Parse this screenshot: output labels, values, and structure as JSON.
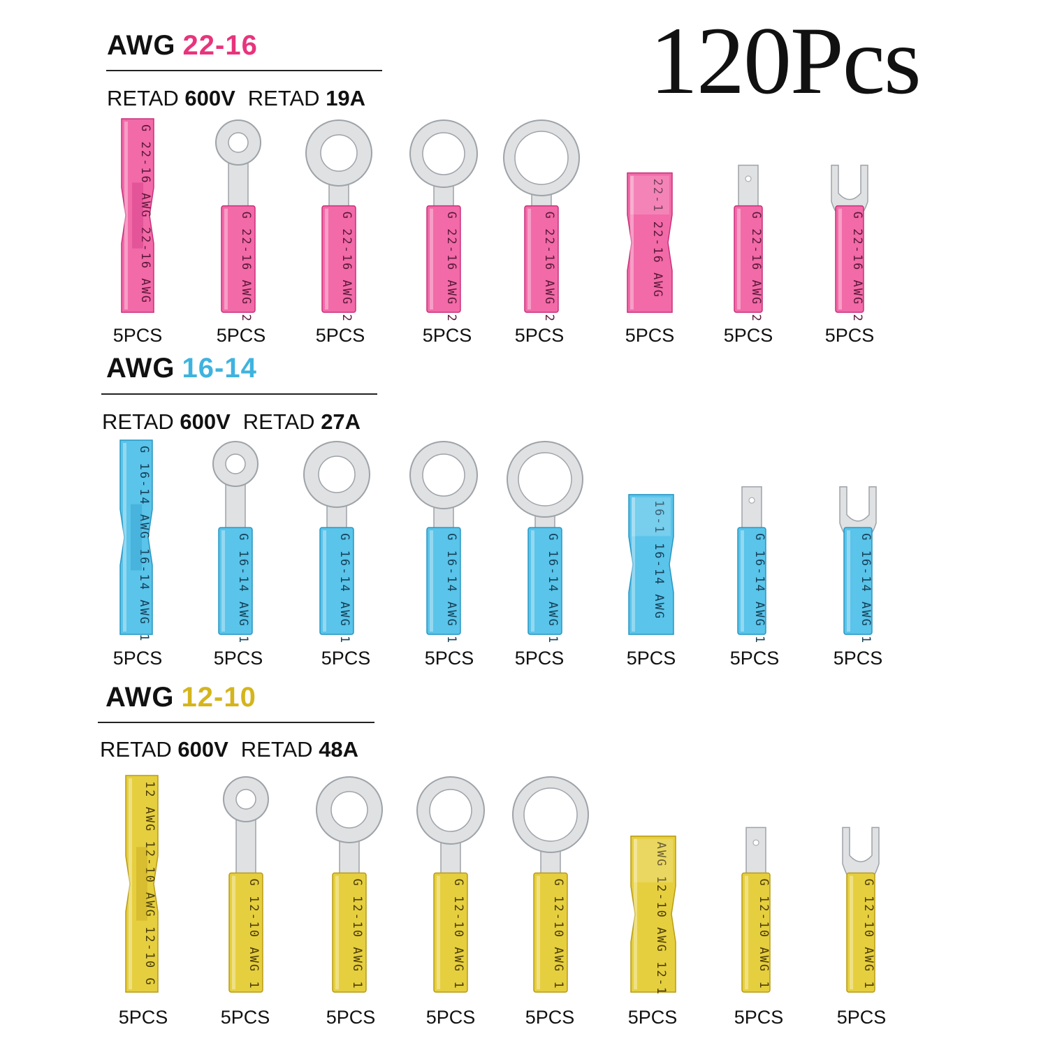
{
  "total": "120Pcs",
  "sections": [
    {
      "awg_prefix": "AWG",
      "gauge": "22-16",
      "color": "#e8347c",
      "voltage_prefix": "RETAD",
      "voltage": "600V",
      "current_prefix": "RETAD",
      "current": "19A",
      "tube_fill": "#f26aa8",
      "tube_dark": "#c92f7a",
      "tube_text": "#5a1838",
      "qty_labels": [
        "5PCS",
        "5PCS",
        "5PCS",
        "5PCS",
        "5PCS",
        "5PCS",
        "5PCS",
        "5PCS"
      ]
    },
    {
      "awg_prefix": "AWG",
      "gauge": "16-14",
      "color": "#3fb3df",
      "voltage_prefix": "RETAD",
      "voltage": "600V",
      "current_prefix": "RETAD",
      "current": "27A",
      "tube_fill": "#5ac4ea",
      "tube_dark": "#2796c3",
      "tube_text": "#143e55",
      "qty_labels": [
        "5PCS",
        "5PCS",
        "5PCS",
        "5PCS",
        "5PCS",
        "5PCS",
        "5PCS",
        "5PCS"
      ]
    },
    {
      "awg_prefix": "AWG",
      "gauge": "12-10",
      "color": "#d4b51c",
      "voltage_prefix": "RETAD",
      "voltage": "600V",
      "current_prefix": "RETAD",
      "current": "48A",
      "tube_fill": "#e6cf3f",
      "tube_dark": "#b99b12",
      "tube_text": "#4a3c0a",
      "qty_labels": [
        "5PCS",
        "5PCS",
        "5PCS",
        "5PCS",
        "5PCS",
        "5PCS",
        "5PCS",
        "5PCS"
      ]
    }
  ],
  "terminal_types": [
    "butt-connector",
    "ring-terminal-small",
    "ring-terminal-medium",
    "ring-terminal-medium-large",
    "ring-terminal-large",
    "female-spade-connector",
    "male-spade-connector",
    "fork-terminal"
  ],
  "tube_prints": [
    [
      "G 22-16 AWG 22-16 AWG",
      "G 22-16 AWG 2",
      "G 22-16 AWG 2",
      "G 22-16 AWG 2",
      "G 22-16 AWG 2",
      "22-1 22-16 AWG",
      "G 22-16 AWG 2",
      "G 22-16 AWG 2"
    ],
    [
      "G 16-14 AWG 16-14 AWG 1",
      "G 16-14 AWG 1",
      "G 16-14 AWG 1",
      "G 16-14 AWG 1",
      "G 16-14 AWG 1",
      "16-1 16-14 AWG",
      "G 16-14 AWG 1",
      "G 16-14 AWG 1"
    ],
    [
      "12 AWG 12-10 AWG 12-10 G",
      "G 12-10 AWG 1",
      "G 12-10 AWG 1",
      "G 12-10 AWG 1",
      "G 12-10 AWG 1",
      "AWG 12-10 AWG 12-1",
      "G 12-10 AWG 1",
      "G 12-10 AWG 1"
    ]
  ]
}
